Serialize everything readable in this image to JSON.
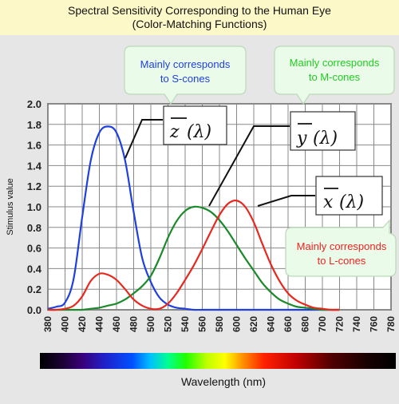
{
  "header": {
    "title_line1": "Spectral Sensitivity Corresponding to the Human Eye",
    "title_line2": "(Color-Matching Functions)"
  },
  "chart_data": {
    "type": "line",
    "title": "Spectral Sensitivity Corresponding to the Human Eye (Color-Matching Functions)",
    "xlabel": "Wavelength (nm)",
    "ylabel": "Stimulus value",
    "xlim": [
      380,
      780
    ],
    "ylim": [
      0,
      2.0
    ],
    "x_ticks": [
      380,
      400,
      420,
      440,
      460,
      480,
      500,
      520,
      540,
      560,
      580,
      600,
      620,
      640,
      660,
      680,
      700,
      720,
      740,
      760,
      780
    ],
    "y_ticks": [
      0.0,
      0.2,
      0.4,
      0.6,
      0.8,
      1.0,
      1.2,
      1.4,
      1.6,
      1.8,
      2.0
    ],
    "grid": true,
    "x": [
      380,
      390,
      400,
      410,
      420,
      430,
      440,
      450,
      460,
      470,
      480,
      490,
      500,
      510,
      520,
      530,
      540,
      550,
      560,
      570,
      580,
      590,
      600,
      610,
      620,
      630,
      640,
      650,
      660,
      670,
      680,
      690,
      700,
      710,
      720
    ],
    "series": [
      {
        "name": "z̄(λ)",
        "color": "#1f3fe0",
        "values": [
          0.01,
          0.03,
          0.07,
          0.3,
          0.9,
          1.45,
          1.72,
          1.78,
          1.72,
          1.45,
          0.95,
          0.5,
          0.27,
          0.12,
          0.05,
          0.02,
          0.01,
          0.0,
          0.0,
          0.0,
          0.0,
          0.0,
          0.0,
          0.0,
          0.0,
          0.0,
          0.0,
          0.0,
          0.0,
          0.0,
          0.0,
          0.0,
          0.0,
          0.0,
          0.0
        ]
      },
      {
        "name": "ȳ(λ)",
        "color": "#1a8a2a",
        "values": [
          0.0,
          0.0,
          0.0,
          0.0,
          0.0,
          0.01,
          0.02,
          0.04,
          0.06,
          0.1,
          0.16,
          0.23,
          0.33,
          0.5,
          0.7,
          0.86,
          0.96,
          1.0,
          0.99,
          0.95,
          0.87,
          0.76,
          0.63,
          0.5,
          0.38,
          0.26,
          0.17,
          0.1,
          0.06,
          0.03,
          0.02,
          0.01,
          0.0,
          0.0,
          0.0
        ]
      },
      {
        "name": "x̄(λ)",
        "color": "#e8281e",
        "values": [
          0.0,
          0.0,
          0.01,
          0.04,
          0.13,
          0.28,
          0.35,
          0.34,
          0.29,
          0.2,
          0.1,
          0.04,
          0.01,
          0.01,
          0.06,
          0.16,
          0.29,
          0.43,
          0.59,
          0.76,
          0.92,
          1.03,
          1.06,
          1.0,
          0.85,
          0.64,
          0.44,
          0.28,
          0.16,
          0.09,
          0.05,
          0.02,
          0.01,
          0.0,
          0.0
        ]
      }
    ],
    "labels": {
      "z": {
        "letter": "z",
        "lambda": "(λ)"
      },
      "y": {
        "letter": "y",
        "lambda": "(λ)"
      },
      "x": {
        "letter": "x",
        "lambda": "(λ)"
      }
    }
  },
  "callouts": [
    {
      "line1": "Mainly corresponds",
      "line2": "to S-cones",
      "color": "#1f3fe0"
    },
    {
      "line1": "Mainly corresponds",
      "line2": "to M-cones",
      "color": "#22cc22"
    },
    {
      "line1": "Mainly corresponds",
      "line2": "to L-cones",
      "color": "#ee2222"
    }
  ]
}
